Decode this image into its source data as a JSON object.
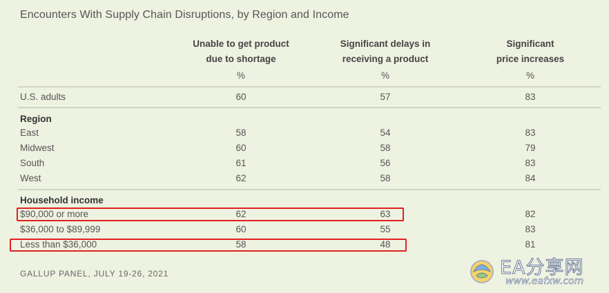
{
  "title": "Encounters With Supply Chain Disruptions, by Region and Income",
  "columns": [
    {
      "line1": "Unable to get product",
      "line2": "due to shortage",
      "unit": "%"
    },
    {
      "line1": "Significant delays in",
      "line2": "receiving a product",
      "unit": "%"
    },
    {
      "line1": "Significant",
      "line2": "price increases",
      "unit": "%"
    }
  ],
  "overall": {
    "label": "U.S. adults",
    "values": [
      "60",
      "57",
      "83"
    ]
  },
  "region": {
    "heading": "Region",
    "rows": [
      {
        "label": "East",
        "values": [
          "58",
          "54",
          "83"
        ]
      },
      {
        "label": "Midwest",
        "values": [
          "60",
          "58",
          "79"
        ]
      },
      {
        "label": "South",
        "values": [
          "61",
          "56",
          "83"
        ]
      },
      {
        "label": "West",
        "values": [
          "62",
          "58",
          "84"
        ]
      }
    ]
  },
  "income": {
    "heading": "Household income",
    "rows": [
      {
        "label": "$90,000 or more",
        "values": [
          "62",
          "63",
          "82"
        ]
      },
      {
        "label": "$36,000 to $89,999",
        "values": [
          "60",
          "55",
          "83"
        ]
      },
      {
        "label": "Less than $36,000",
        "values": [
          "58",
          "48",
          "81"
        ]
      }
    ]
  },
  "source": "GALLUP PANEL, JULY 19-26, 2021",
  "watermark": {
    "text": "EA分享网",
    "url": "www.eafxw.com"
  },
  "colors": {
    "background": "#eef2e0",
    "highlight": "#e02020"
  }
}
